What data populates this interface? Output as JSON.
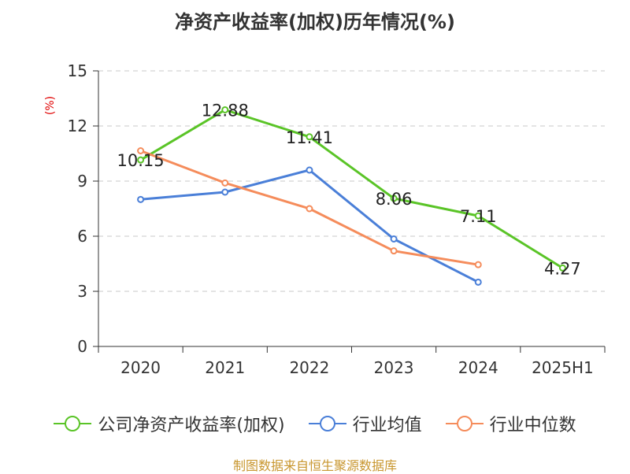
{
  "title": "净资产收益率(加权)历年情况(%)",
  "source": "制图数据来自恒生聚源数据库",
  "chart_data": {
    "type": "line",
    "title": "净资产收益率(加权)历年情况(%)",
    "ylabel": "(%)",
    "categories": [
      "2020",
      "2021",
      "2022",
      "2023",
      "2024",
      "2025H1"
    ],
    "ylim": [
      0,
      15
    ],
    "yticks": [
      0,
      3,
      6,
      9,
      12,
      15
    ],
    "grid": true,
    "legend_position": "bottom",
    "series": [
      {
        "name": "公司净资产收益率(加权)",
        "color": "#5ac427",
        "values": [
          10.15,
          12.88,
          11.41,
          8.06,
          7.11,
          4.27
        ],
        "labels": [
          "10.15",
          "12.88",
          "11.41",
          "8.06",
          "7.11",
          "4.27"
        ]
      },
      {
        "name": "行业均值",
        "color": "#4a7fd8",
        "values": [
          8.0,
          8.4,
          9.6,
          5.85,
          3.5,
          null
        ]
      },
      {
        "name": "行业中位数",
        "color": "#f58c5b",
        "values": [
          10.65,
          8.9,
          7.5,
          5.2,
          4.45,
          null
        ]
      }
    ]
  }
}
